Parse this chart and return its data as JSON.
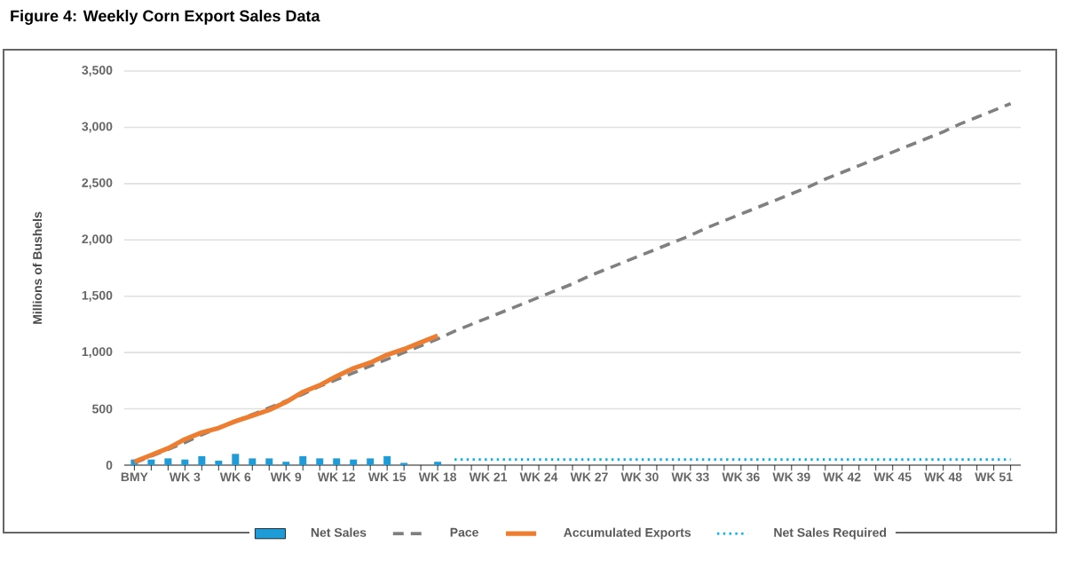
{
  "chart_data": {
    "type": "bar",
    "title": "Figure 4: Weekly Corn Export Sales Data",
    "ylabel": "Millions of Bushels",
    "categories": [
      "BMY",
      null,
      null,
      "WK 3",
      null,
      null,
      "WK 6",
      null,
      null,
      "WK 9",
      null,
      null,
      "WK 12",
      null,
      null,
      "WK 15",
      null,
      null,
      "WK 18",
      null,
      null,
      "WK 21",
      null,
      null,
      "WK 24",
      null,
      null,
      "WK 27",
      null,
      null,
      "WK 30",
      null,
      null,
      "WK 33",
      null,
      null,
      "WK 36",
      null,
      null,
      "WK 39",
      null,
      null,
      "WK 42",
      null,
      null,
      "WK 45",
      null,
      null,
      "WK 48",
      null,
      null,
      "WK 51",
      null
    ],
    "ylim": [
      0,
      3500
    ],
    "yticks": [
      0,
      500,
      {
        "value": 1000,
        "label": "1,000"
      },
      {
        "value": 1500,
        "label": "1,500"
      },
      {
        "value": 2000,
        "label": "2,000"
      },
      {
        "value": 2500,
        "label": "2,500"
      },
      {
        "value": 3000,
        "label": "3,000"
      },
      {
        "value": 3500,
        "label": "3,500"
      }
    ],
    "grid": "y",
    "legend": "bottom",
    "series": [
      {
        "name": "Net Sales",
        "color": "#1f9bd7",
        "values": [
          50,
          50,
          60,
          50,
          80,
          40,
          100,
          60,
          60,
          30,
          80,
          60,
          60,
          50,
          60,
          80,
          20,
          null,
          30,
          null,
          null,
          null,
          null,
          null,
          null,
          null,
          null,
          null,
          null,
          null,
          null,
          null,
          null,
          null,
          null,
          null,
          null,
          null,
          null,
          null,
          null,
          null,
          null,
          null,
          null,
          null,
          null,
          null,
          null,
          null,
          null,
          null,
          null
        ]
      },
      {
        "name": "Pace",
        "type": "line",
        "line_style": "dashed",
        "color": "#808080",
        "values": [
          20,
          80,
          140,
          200,
          270,
          330,
          390,
          450,
          510,
          570,
          630,
          700,
          760,
          820,
          880,
          940,
          1000,
          1060,
          1120,
          1190,
          1250,
          1310,
          1370,
          1430,
          1490,
          1550,
          1610,
          1680,
          1740,
          1800,
          1860,
          1920,
          1980,
          2040,
          2110,
          2170,
          2230,
          2290,
          2350,
          2410,
          2470,
          2540,
          2600,
          2660,
          2720,
          2780,
          2840,
          2900,
          2960,
          3030,
          3090,
          3150,
          3210
        ]
      },
      {
        "name": "Accumulated Exports",
        "type": "line",
        "line_style": "solid",
        "color": "#ed7d31",
        "values": [
          30,
          90,
          150,
          230,
          290,
          330,
          390,
          440,
          490,
          560,
          650,
          710,
          790,
          860,
          910,
          980,
          1030,
          1090,
          1150,
          null,
          null,
          null,
          null,
          null,
          null,
          null,
          null,
          null,
          null,
          null,
          null,
          null,
          null,
          null,
          null,
          null,
          null,
          null,
          null,
          null,
          null,
          null,
          null,
          null,
          null,
          null,
          null,
          null,
          null,
          null,
          null,
          null,
          null
        ]
      },
      {
        "name": "Net Sales Required",
        "type": "line",
        "line_style": "dotted",
        "color": "#00b0f0",
        "values": [
          null,
          null,
          null,
          null,
          null,
          null,
          null,
          null,
          null,
          null,
          null,
          null,
          null,
          null,
          null,
          null,
          null,
          null,
          null,
          50,
          50,
          50,
          50,
          50,
          50,
          50,
          50,
          50,
          50,
          50,
          50,
          50,
          50,
          50,
          50,
          50,
          50,
          50,
          50,
          50,
          50,
          50,
          50,
          50,
          50,
          50,
          50,
          50,
          50,
          50,
          50,
          50,
          50
        ]
      }
    ]
  }
}
